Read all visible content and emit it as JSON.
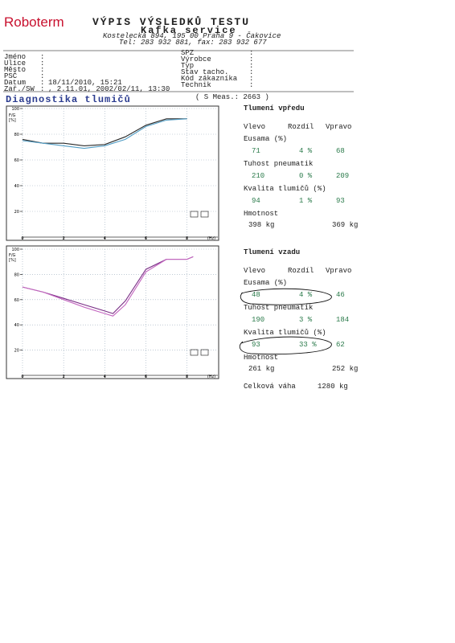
{
  "header": {
    "brand": "Roboterm",
    "title": "VÝPIS VÝSLEDKŮ TESTU",
    "company": "Kafka service",
    "address": "Kostelecká 894, 195 00 Praha 9 - Čakovice",
    "contact": "Tel: 283 932 881, fax: 283 932 677"
  },
  "separator": ":",
  "fields_left": [
    {
      "label": "Jméno"
    },
    {
      "label": "Ulice"
    },
    {
      "label": "Město"
    },
    {
      "label": "PSČ"
    },
    {
      "label": "Datum",
      "value": "18/11/2010, 15:21"
    },
    {
      "label": "Zař./SW",
      "value": ", 2.11.01, 2002/02/11, 13:30"
    }
  ],
  "fields_right": [
    {
      "label": "SPZ"
    },
    {
      "label": "Výrobce"
    },
    {
      "label": "Typ"
    },
    {
      "label": "Stav tacho."
    },
    {
      "label": "Kód zákazníka"
    },
    {
      "label": "Technik"
    }
  ],
  "section": {
    "title": "Diagnostika tlumičů",
    "measure": "( S Meas.: 2663 )"
  },
  "charts": [
    {
      "type": "line",
      "y_label": "F/G",
      "y_unit": "[%]",
      "x_unit": "(Hz)",
      "xlim": [
        0,
        9.5
      ],
      "ylim": [
        0,
        100
      ],
      "xticks": [
        0,
        2,
        4,
        6,
        8
      ],
      "yticks": [
        20,
        40,
        60,
        80,
        100
      ],
      "grid": true,
      "x": [
        0,
        1,
        2,
        3,
        4,
        5,
        6,
        7,
        8
      ],
      "series": [
        {
          "color": "#2a2a2a",
          "values": [
            76,
            73,
            73,
            71,
            72,
            78,
            87,
            92,
            92
          ]
        },
        {
          "color": "#4f9cc4",
          "values": [
            75,
            73,
            71,
            69,
            71,
            76,
            86,
            91,
            92
          ]
        }
      ]
    },
    {
      "type": "line",
      "y_label": "F/G",
      "y_unit": "[%]",
      "x_unit": "(Hz)",
      "xlim": [
        0,
        9.5
      ],
      "ylim": [
        0,
        100
      ],
      "xticks": [
        0,
        2,
        4,
        6,
        8
      ],
      "yticks": [
        20,
        40,
        60,
        80,
        100
      ],
      "grid": true,
      "x": [
        0,
        1,
        2,
        3,
        4,
        4.4,
        5,
        6,
        7,
        8,
        8.3
      ],
      "series": [
        {
          "color": "#7a2f86",
          "values": [
            70,
            66,
            61,
            56,
            51,
            49,
            59,
            84,
            92,
            92,
            94
          ]
        },
        {
          "color": "#c468c0",
          "values": [
            70,
            66,
            60,
            54,
            49,
            47,
            56,
            82,
            92,
            92,
            94
          ]
        }
      ]
    }
  ],
  "results": {
    "front": {
      "title": "Tlumení vpředu",
      "columns": [
        "Vlevo",
        "Rozdíl",
        "Vpravo"
      ],
      "rows": [
        {
          "label": "Eusama (%)",
          "values": [
            "71",
            "4 %",
            "68"
          ]
        },
        {
          "label": "Tuhost pneumatik",
          "values": [
            "210",
            "0 %",
            "209"
          ]
        },
        {
          "label": "Kvalita tlumičů (%)",
          "values": [
            "94",
            "1 %",
            "93"
          ]
        }
      ],
      "weight": {
        "label": "Hmotnost",
        "values": [
          "398 kg",
          "369 kg"
        ]
      }
    },
    "rear": {
      "title": "Tlumení vzadu",
      "columns": [
        "Vlevo",
        "Rozdíl",
        "Vpravo"
      ],
      "rows": [
        {
          "label": "Eusama (%)",
          "values": [
            "48",
            "4 %",
            "46"
          ]
        },
        {
          "label": "Tuhost pneumatik",
          "values": [
            "190",
            "3 %",
            "184"
          ]
        },
        {
          "label": "Kvalita tlumičů (%)",
          "values": [
            "93",
            "33 %",
            "62"
          ]
        }
      ],
      "weight": {
        "label": "Hmotnost",
        "values": [
          "261 kg",
          "252 kg"
        ]
      }
    },
    "total": {
      "label": "Celková váha",
      "value": "1280 kg"
    }
  }
}
